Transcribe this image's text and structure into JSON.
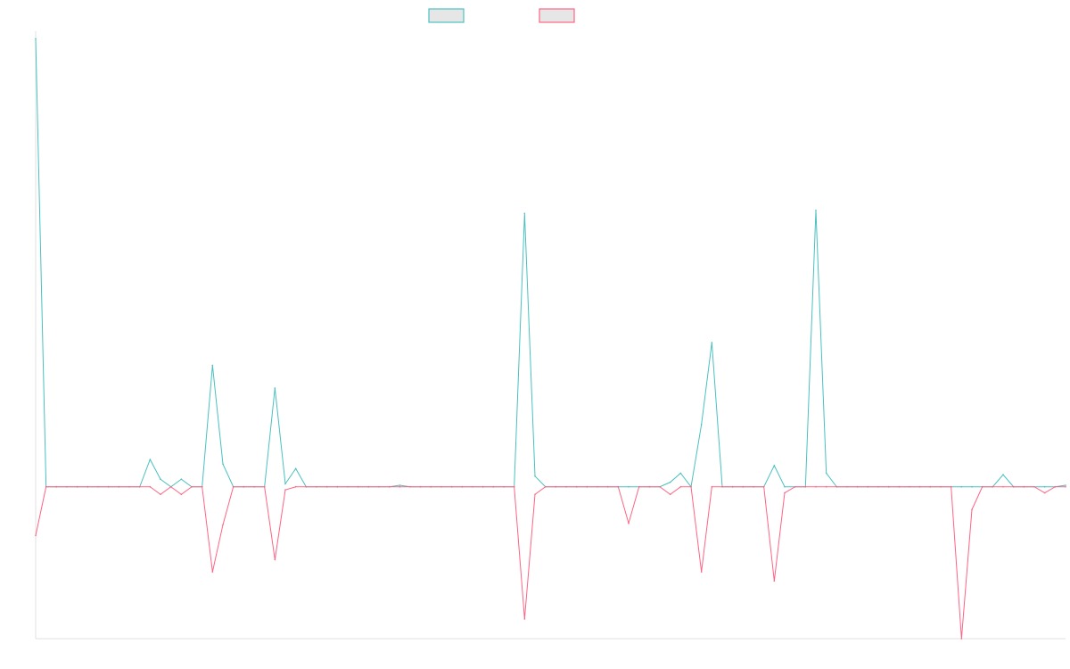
{
  "colors": {
    "series_a": "#4bc0c0",
    "series_b": "#ff6384",
    "legend_fill": "#e6e6e6",
    "axis": "#e0e0e0"
  },
  "chart_data": {
    "type": "line",
    "title": "",
    "xlabel": "",
    "ylabel": "",
    "ylim": [
      -100,
      300
    ],
    "legend_placement": "top",
    "grid": false,
    "n_points": 100,
    "series": [
      {
        "color": "#4bc0c0",
        "marker": "circle",
        "values": [
          295,
          0,
          0,
          0,
          0,
          0,
          0,
          0,
          0,
          0,
          0,
          18,
          5,
          0,
          5,
          0,
          0,
          80,
          15,
          0,
          0,
          0,
          0,
          65,
          2,
          12,
          0,
          0,
          0,
          0,
          0,
          0,
          0,
          0,
          0,
          1,
          0,
          0,
          0,
          0,
          0,
          0,
          0,
          0,
          0,
          0,
          0,
          180,
          7,
          0,
          0,
          0,
          0,
          0,
          0,
          0,
          0,
          0,
          0,
          0,
          0,
          3,
          9,
          0,
          41,
          95,
          0,
          0,
          0,
          0,
          0,
          14,
          0,
          0,
          0,
          182,
          9,
          0,
          0,
          0,
          0,
          0,
          0,
          0,
          0,
          0,
          0,
          0,
          0,
          0,
          0,
          0,
          0,
          8,
          0,
          0,
          0,
          0,
          0,
          1
        ]
      },
      {
        "color": "#ff6384",
        "marker": "circle",
        "values": [
          -32,
          0,
          0,
          0,
          0,
          0,
          0,
          0,
          0,
          0,
          0,
          0,
          -5,
          0,
          -5,
          0,
          0,
          -56,
          -25,
          0,
          0,
          0,
          0,
          -48,
          -2,
          0,
          0,
          0,
          0,
          0,
          0,
          0,
          0,
          0,
          0,
          0,
          0,
          0,
          0,
          0,
          0,
          0,
          0,
          0,
          0,
          0,
          0,
          -87,
          -5,
          0,
          0,
          0,
          0,
          0,
          0,
          0,
          0,
          -24,
          0,
          0,
          0,
          -5,
          0,
          0,
          -56,
          0,
          0,
          0,
          0,
          0,
          0,
          -62,
          -4,
          0,
          0,
          0,
          0,
          0,
          0,
          0,
          0,
          0,
          0,
          0,
          0,
          0,
          0,
          0,
          0,
          -100,
          -15,
          0,
          0,
          0,
          0,
          0,
          0,
          -4,
          0,
          0
        ]
      }
    ]
  }
}
